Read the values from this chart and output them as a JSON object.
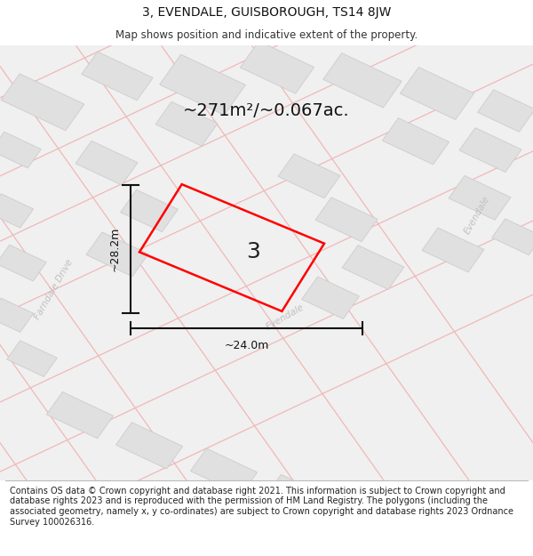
{
  "title": "3, EVENDALE, GUISBOROUGH, TS14 8JW",
  "subtitle": "Map shows position and indicative extent of the property.",
  "footer": "Contains OS data © Crown copyright and database right 2021. This information is subject to Crown copyright and database rights 2023 and is reproduced with the permission of HM Land Registry. The polygons (including the associated geometry, namely x, y co-ordinates) are subject to Crown copyright and database rights 2023 Ordnance Survey 100026316.",
  "area_text": "~271m²/~0.067ac.",
  "dim_h": "~28.2m",
  "dim_w": "~24.0m",
  "label": "3",
  "road_color": "#f0b8b8",
  "building_color": "#e0e0e0",
  "building_edge": "#cccccc",
  "plot_color": "#ff0000",
  "dim_color": "#111111",
  "street_text_color": "#c0c0c0",
  "title_fontsize": 10,
  "subtitle_fontsize": 8.5,
  "footer_fontsize": 7
}
